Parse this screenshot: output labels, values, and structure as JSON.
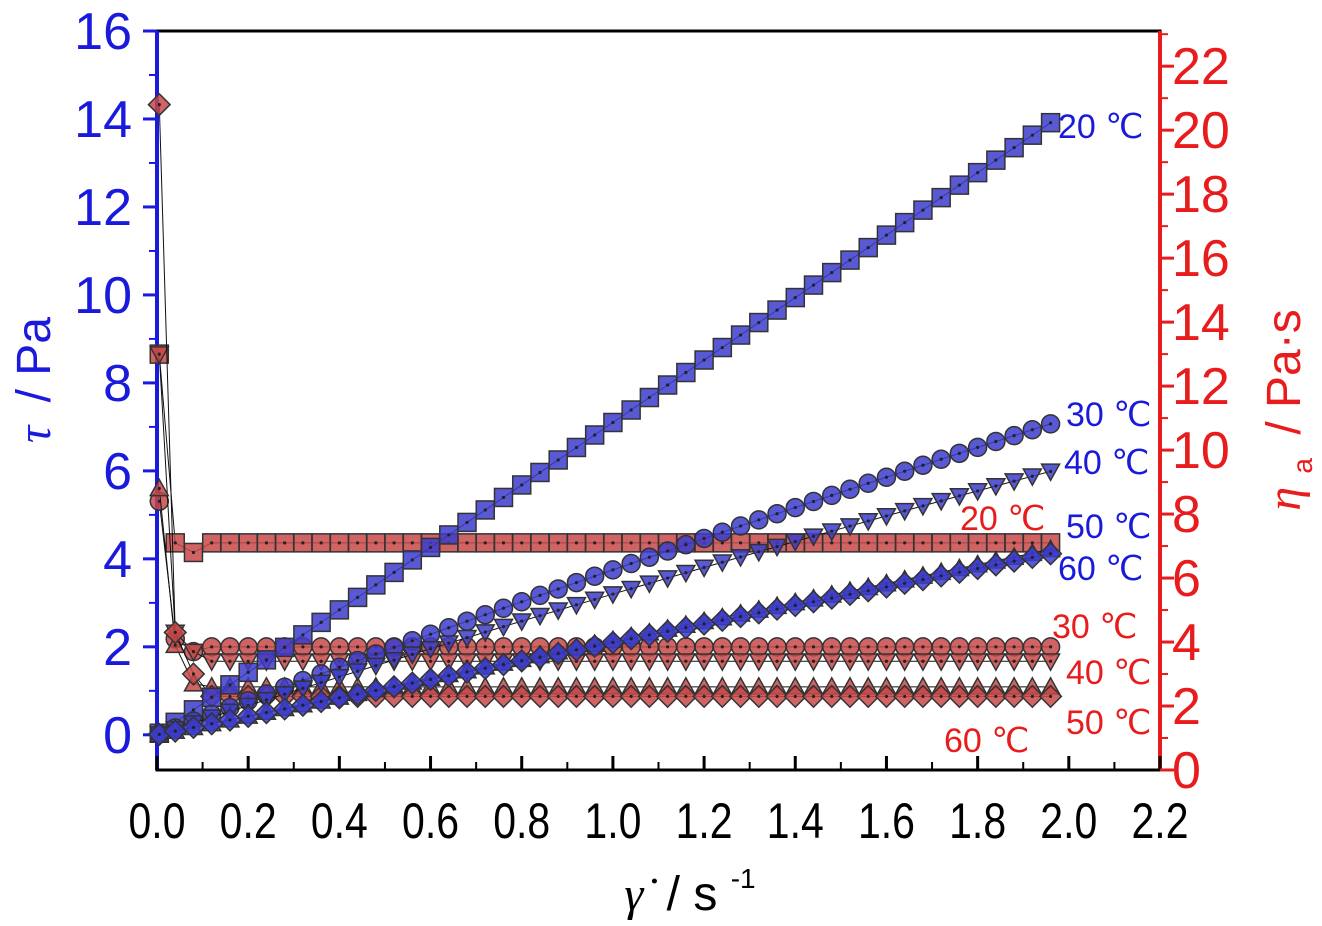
{
  "chart_data": {
    "type": "scatter",
    "colors": {
      "left_axis": "#1a1adc",
      "right_axis": "#e81c1c",
      "blue_marker": "#3c3ccc",
      "red_marker": "#c84848"
    },
    "x_axis": {
      "label_symbol": "γ̇",
      "label_unit": "/ s",
      "label_sup": "-1",
      "range": [
        0,
        2.2
      ],
      "ticks": [
        "0.0",
        "0.2",
        "0.4",
        "0.6",
        "0.8",
        "1.0",
        "1.2",
        "1.4",
        "1.6",
        "1.8",
        "2.0",
        "2.2"
      ]
    },
    "y_left": {
      "label_symbol": "τ",
      "label_unit": "/ Pa",
      "range": [
        -0.8,
        16
      ],
      "ticks": [
        "0",
        "2",
        "4",
        "6",
        "8",
        "10",
        "12",
        "14",
        "16"
      ]
    },
    "y_right": {
      "label_symbol": "η",
      "label_sub": "a",
      "label_unit": "/ Pa·s",
      "range": [
        0,
        23.1
      ],
      "ticks": [
        "0",
        "2",
        "4",
        "6",
        "8",
        "10",
        "12",
        "14",
        "16",
        "18",
        "20",
        "22"
      ]
    },
    "stress_series": [
      {
        "name": "20 ℃",
        "marker": "square",
        "slope": 7.1,
        "curve": 0
      },
      {
        "name": "30 ℃",
        "marker": "circle",
        "slope": 3.9,
        "curve": -0.15
      },
      {
        "name": "40 ℃",
        "marker": "triangle-down",
        "slope": 3.35,
        "curve": -0.15
      },
      {
        "name": "50 ℃",
        "marker": "triangle-up",
        "slope": 2.15,
        "curve": 0
      },
      {
        "name": "60 ℃",
        "marker": "diamond",
        "slope": 2.1,
        "curve": 0
      }
    ],
    "viscosity_series": [
      {
        "name": "20 ℃",
        "marker": "square",
        "first_points": [
          [
            0.005,
            13
          ],
          [
            0.04,
            7.1
          ],
          [
            0.08,
            6.8
          ]
        ],
        "plateau": 7.1
      },
      {
        "name": "30 ℃",
        "marker": "circle",
        "first_points": [
          [
            0.005,
            8.4
          ],
          [
            0.04,
            4.1
          ],
          [
            0.08,
            3.7
          ]
        ],
        "plateau": 3.85
      },
      {
        "name": "40 ℃",
        "marker": "triangle-down",
        "first_points": [
          [
            0.005,
            13
          ],
          [
            0.04,
            4.3
          ],
          [
            0.08,
            3.7
          ]
        ],
        "plateau": 3.4
      },
      {
        "name": "50 ℃",
        "marker": "triangle-up",
        "first_points": [
          [
            0.005,
            8.8
          ],
          [
            0.04,
            3.9
          ],
          [
            0.08,
            2.7
          ]
        ],
        "plateau": 2.6
      },
      {
        "name": "60 ℃",
        "marker": "diamond",
        "first_points": [
          [
            0.005,
            20.8
          ],
          [
            0.04,
            4.3
          ],
          [
            0.08,
            3.0
          ]
        ],
        "plateau": 2.3
      }
    ],
    "x_step": 0.04,
    "x_end": 1.96
  },
  "labels": {
    "blue": [
      "20 ℃",
      "30 ℃",
      "40 ℃",
      "50 ℃",
      "60 ℃"
    ],
    "red": [
      "20 ℃",
      "30 ℃",
      "40 ℃",
      "50 ℃",
      "60 ℃"
    ]
  }
}
